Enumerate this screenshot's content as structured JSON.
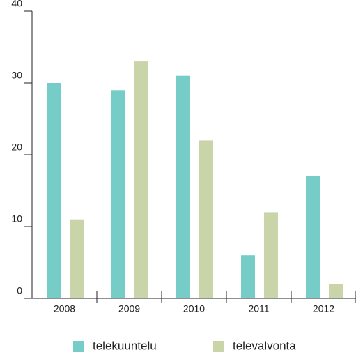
{
  "chart_data": {
    "type": "bar",
    "categories": [
      "2008",
      "2009",
      "2010",
      "2011",
      "2012"
    ],
    "series": [
      {
        "name": "telekuuntelu",
        "color": "#76cdc8",
        "values": [
          30,
          29,
          31,
          6,
          17
        ]
      },
      {
        "name": "televalvonta",
        "color": "#c9d5a8",
        "values": [
          11,
          33,
          22,
          12,
          2
        ]
      }
    ],
    "ylim": [
      0,
      40
    ],
    "yticks": [
      0,
      10,
      20,
      30,
      40
    ],
    "grid": false,
    "legend": "bottom"
  }
}
